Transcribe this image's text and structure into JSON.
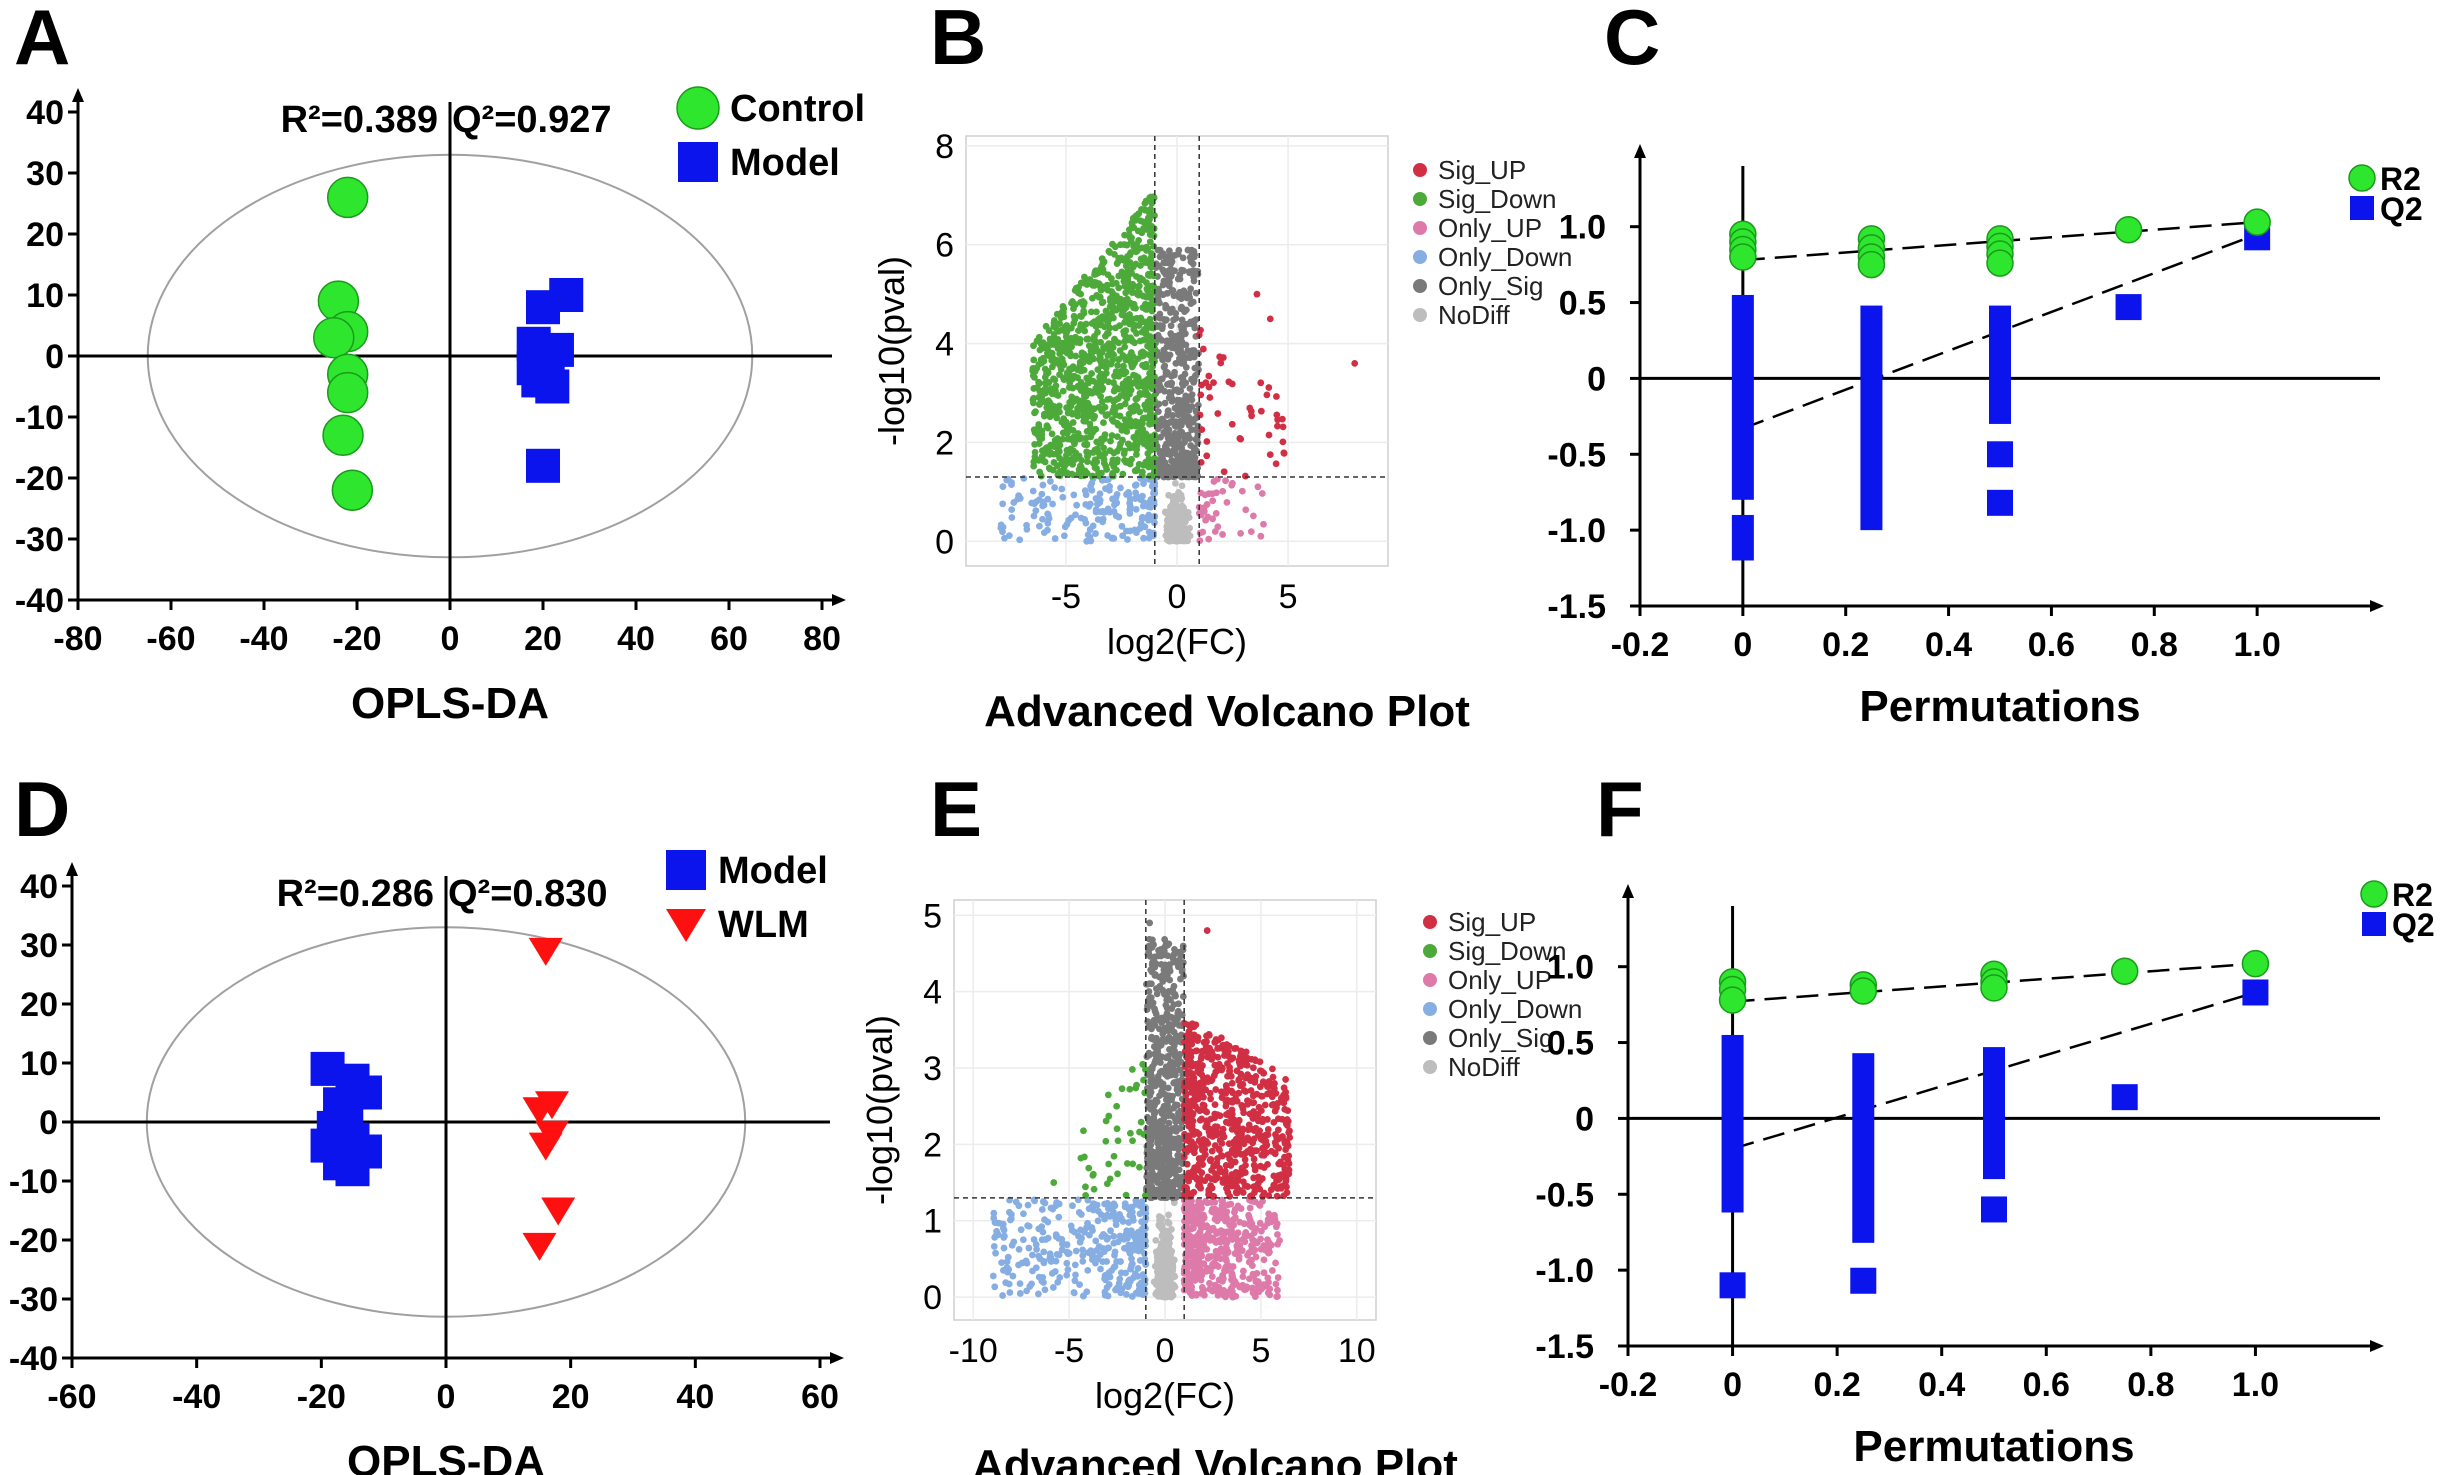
{
  "colors": {
    "green": "#2ee62e",
    "blue": "#0b14ec",
    "red": "#ff1010",
    "sig_up": "#d12f44",
    "sig_down": "#4daa3a",
    "only_up": "#de7aaa",
    "only_down": "#86aee2",
    "only_sig": "#7a7a7a",
    "nodiff": "#bdbdbd"
  },
  "chart_data": [
    {
      "panel": "A",
      "type": "scatter",
      "title": "OPLS-DA",
      "annotation_r2": "R²=0.389",
      "annotation_q2": "Q²=0.927",
      "xlim": [
        -80,
        80
      ],
      "ylim": [
        -40,
        40
      ],
      "xticks": [
        "-80",
        "-60",
        "-40",
        "-20",
        "0",
        "20",
        "40",
        "60",
        "80"
      ],
      "yticks": [
        "40",
        "30",
        "20",
        "10",
        "0",
        "-10",
        "-20",
        "-30",
        "-40"
      ],
      "ellipse": {
        "rx": 65,
        "ry": 33
      },
      "series": [
        {
          "name": "Control",
          "marker": "circle",
          "color": "#2ee62e",
          "points": [
            [
              -22,
              26
            ],
            [
              -24,
              9
            ],
            [
              -22,
              4
            ],
            [
              -25,
              3
            ],
            [
              -22,
              -3
            ],
            [
              -22,
              -6
            ],
            [
              -23,
              -13
            ],
            [
              -21,
              -22
            ]
          ]
        },
        {
          "name": "Model",
          "marker": "square",
          "color": "#0b14ec",
          "points": [
            [
              25,
              10
            ],
            [
              20,
              8
            ],
            [
              18,
              2
            ],
            [
              23,
              1
            ],
            [
              18,
              -2
            ],
            [
              21,
              -4
            ],
            [
              19,
              -4
            ],
            [
              22,
              -5
            ],
            [
              20,
              -18
            ]
          ]
        }
      ]
    },
    {
      "panel": "B",
      "type": "scatter",
      "title": "Advanced Volcano Plot",
      "xlabel": "log2(FC)",
      "ylabel": "-log10(pval)",
      "xlim": [
        -9.5,
        9.5
      ],
      "ylim": [
        -0.5,
        8.2
      ],
      "xticks": [
        "-5",
        "0",
        "5"
      ],
      "yticks": [
        "0",
        "2",
        "4",
        "6",
        "8"
      ],
      "thresholds": {
        "log2fc": 1,
        "pval_line": 1.3
      },
      "legend": [
        "Sig_UP",
        "Sig_Down",
        "Only_UP",
        "Only_Down",
        "Only_Sig",
        "NoDiff"
      ],
      "notable_points": [
        [
          8,
          3.6
        ],
        [
          4.2,
          4.5
        ],
        [
          3.6,
          5.0
        ]
      ],
      "seed": 7,
      "counts": {
        "Sig_UP": 45,
        "Sig_Down": 1100,
        "Only_UP": 40,
        "Only_Down": 180,
        "Only_Sig": 500,
        "NoDiff": 400
      }
    },
    {
      "panel": "C",
      "type": "scatter",
      "title": "Permutations",
      "xlim": [
        -0.2,
        1.2
      ],
      "ylim": [
        -1.5,
        1.4
      ],
      "xticks": [
        "-0.2",
        "0",
        "0.2",
        "0.4",
        "0.6",
        "0.8",
        "1.0"
      ],
      "yticks": [
        "1.0",
        "0.5",
        "0",
        "-0.5",
        "-1.0",
        "-1.5"
      ],
      "r2_line": [
        [
          0,
          0.78
        ],
        [
          1,
          1.03
        ]
      ],
      "q2_line": [
        [
          0,
          -0.33
        ],
        [
          1,
          0.95
        ]
      ],
      "series": [
        {
          "name": "R2",
          "marker": "circle",
          "color": "#2ee62e",
          "points": [
            [
              0,
              0.95
            ],
            [
              0,
              0.9
            ],
            [
              0,
              0.85
            ],
            [
              0,
              0.8
            ],
            [
              0.25,
              0.92
            ],
            [
              0.25,
              0.86
            ],
            [
              0.25,
              0.8
            ],
            [
              0.25,
              0.75
            ],
            [
              0.5,
              0.92
            ],
            [
              0.5,
              0.87
            ],
            [
              0.5,
              0.82
            ],
            [
              0.5,
              0.76
            ],
            [
              0.75,
              0.98
            ],
            [
              1,
              1.03
            ]
          ]
        },
        {
          "name": "Q2",
          "marker": "square",
          "color": "#0b14ec",
          "bars": [
            [
              0,
              -0.8,
              0.55
            ],
            [
              0,
              -1.2,
              -0.9
            ],
            [
              0.25,
              -1.0,
              0.48
            ],
            [
              0.5,
              -0.3,
              0.48
            ]
          ],
          "points": [
            [
              0.5,
              -0.5
            ],
            [
              0.5,
              -0.82
            ],
            [
              0.75,
              0.47
            ],
            [
              1,
              0.93
            ]
          ]
        }
      ]
    },
    {
      "panel": "D",
      "type": "scatter",
      "title": "OPLS-DA",
      "annotation_r2": "R²=0.286",
      "annotation_q2": "Q²=0.830",
      "xlim": [
        -60,
        60
      ],
      "ylim": [
        -40,
        40
      ],
      "xticks": [
        "-60",
        "-40",
        "-20",
        "0",
        "20",
        "40",
        "60"
      ],
      "yticks": [
        "40",
        "30",
        "20",
        "10",
        "0",
        "-10",
        "-20",
        "-30",
        "-40"
      ],
      "ellipse": {
        "rx": 48,
        "ry": 33
      },
      "series": [
        {
          "name": "Model",
          "marker": "square",
          "color": "#0b14ec",
          "points": [
            [
              -19,
              9
            ],
            [
              -15,
              7
            ],
            [
              -13,
              5
            ],
            [
              -17,
              3
            ],
            [
              -16,
              1
            ],
            [
              -18,
              -1
            ],
            [
              -15,
              -3
            ],
            [
              -19,
              -4
            ],
            [
              -13,
              -5
            ],
            [
              -17,
              -7
            ],
            [
              -15,
              -8
            ]
          ]
        },
        {
          "name": "WLM",
          "marker": "triangle",
          "color": "#ff1010",
          "points": [
            [
              16,
              29
            ],
            [
              17,
              3
            ],
            [
              15,
              2
            ],
            [
              17,
              -2
            ],
            [
              16,
              -4
            ],
            [
              18,
              -15
            ],
            [
              15,
              -21
            ]
          ]
        }
      ]
    },
    {
      "panel": "E",
      "type": "scatter",
      "title": "Advanced Volcano Plot",
      "xlabel": "log2(FC)",
      "ylabel": "-log10(pval)",
      "xlim": [
        -11,
        11
      ],
      "ylim": [
        -0.3,
        5.2
      ],
      "xticks": [
        "-10",
        "-5",
        "0",
        "5",
        "10"
      ],
      "yticks": [
        "0",
        "1",
        "2",
        "3",
        "4",
        "5"
      ],
      "thresholds": {
        "log2fc": 1,
        "pval_line": 1.3
      },
      "legend": [
        "Sig_UP",
        "Sig_Down",
        "Only_UP",
        "Only_Down",
        "Only_Sig",
        "NoDiff"
      ],
      "notable_points": [
        [
          2.2,
          4.8
        ],
        [
          -0.8,
          4.9
        ],
        [
          -5.8,
          1.5
        ]
      ],
      "seed": 11,
      "counts": {
        "Sig_UP": 650,
        "Sig_Down": 40,
        "Only_UP": 450,
        "Only_Down": 350,
        "Only_Sig": 600,
        "NoDiff": 500
      }
    },
    {
      "panel": "F",
      "type": "scatter",
      "title": "Permutations",
      "xlim": [
        -0.2,
        1.2
      ],
      "ylim": [
        -1.5,
        1.4
      ],
      "xticks": [
        "-0.2",
        "0",
        "0.2",
        "0.4",
        "0.6",
        "0.8",
        "1.0"
      ],
      "yticks": [
        "1.0",
        "0.5",
        "0",
        "-0.5",
        "-1.0",
        "-1.5"
      ],
      "r2_line": [
        [
          0,
          0.77
        ],
        [
          1,
          1.02
        ]
      ],
      "q2_line": [
        [
          0,
          -0.2
        ],
        [
          1,
          0.83
        ]
      ],
      "series": [
        {
          "name": "R2",
          "marker": "circle",
          "color": "#2ee62e",
          "points": [
            [
              0,
              0.9
            ],
            [
              0,
              0.85
            ],
            [
              0,
              0.78
            ],
            [
              0.25,
              0.88
            ],
            [
              0.25,
              0.84
            ],
            [
              0.5,
              0.95
            ],
            [
              0.5,
              0.9
            ],
            [
              0.5,
              0.86
            ],
            [
              0.75,
              0.97
            ],
            [
              1,
              1.02
            ]
          ]
        },
        {
          "name": "Q2",
          "marker": "square",
          "color": "#0b14ec",
          "bars": [
            [
              0,
              -0.62,
              0.55
            ],
            [
              0.25,
              -0.82,
              0.43
            ],
            [
              0.5,
              -0.4,
              0.47
            ]
          ],
          "points": [
            [
              0,
              -1.1
            ],
            [
              0.25,
              -1.07
            ],
            [
              0.5,
              -0.6
            ],
            [
              0.75,
              0.14
            ],
            [
              1,
              0.83
            ]
          ]
        }
      ]
    }
  ]
}
